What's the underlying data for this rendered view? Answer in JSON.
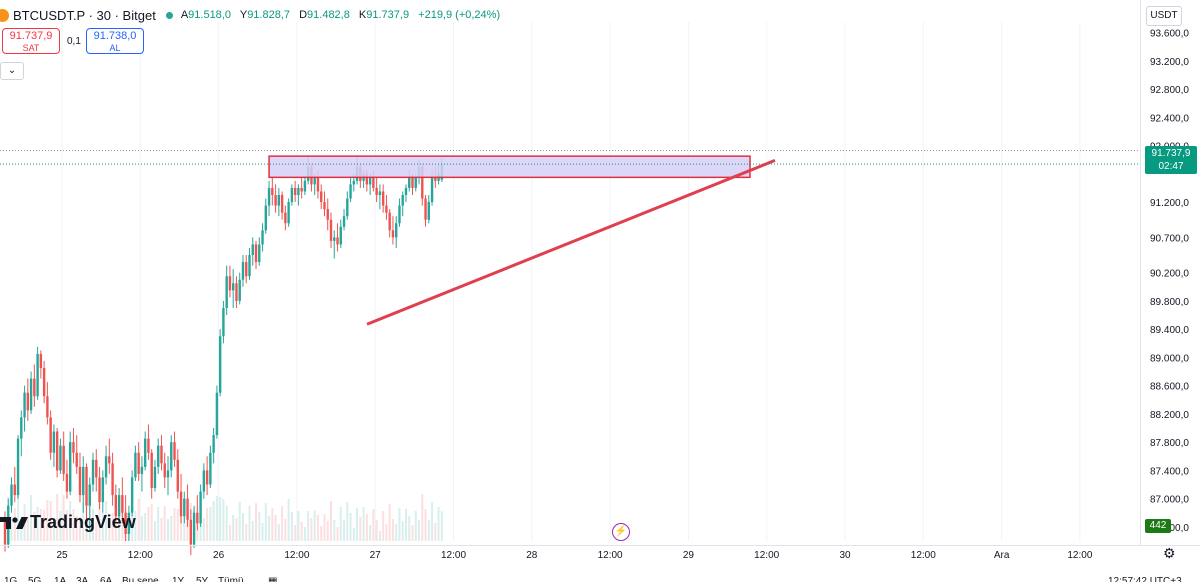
{
  "header": {
    "symbol": "BTCUSDT.P · 30 · Bitget",
    "ohlc": {
      "open_label": "A",
      "open": "91.518,0",
      "high_label": "Y",
      "high": "91.828,7",
      "low_label": "D",
      "low": "91.482,8",
      "close_label": "K",
      "close": "91.737,9",
      "change": "+219,9 (+0,24%)"
    }
  },
  "trade": {
    "sell_price": "91.737,9",
    "sell_label": "SAT",
    "spread": "0,1",
    "buy_price": "91.738,0",
    "buy_label": "AL",
    "collapse_icon": "chevron-down-icon"
  },
  "price_scale": {
    "currency": "USDT",
    "current_price": "91.737,9",
    "countdown": "02:47",
    "volume": "442"
  },
  "logo": {
    "text": "TradingView"
  },
  "bottom_bar": [
    "1G",
    "5G",
    "1A",
    "3A",
    "6A",
    "Bu sene",
    "1Y",
    "5Y",
    "Tümü",
    "",
    "12:57:42 UTC+3"
  ],
  "colors": {
    "up": "#26a69a",
    "down": "#ef5350",
    "trendline": "#e0404d",
    "zone_fill": "#d6d0f7",
    "zone_border": "#e03040",
    "price_tag": "#089981"
  },
  "chart_data": {
    "type": "candlestick",
    "symbol": "BTCUSDT.P",
    "interval": "30",
    "exchange": "Bitget",
    "y_ticks": [
      "93.600,0",
      "93.200,0",
      "92.800,0",
      "92.400,0",
      "92.000,0",
      "91.200,0",
      "90.700,0",
      "90.200,0",
      "89.800,0",
      "89.400,0",
      "89.000,0",
      "88.600,0",
      "88.200,0",
      "87.800,0",
      "87.400,0",
      "87.000,0",
      "86.600,0"
    ],
    "x_ticks": [
      "25",
      "12:00",
      "26",
      "12:00",
      "27",
      "12:00",
      "28",
      "12:00",
      "29",
      "12:00",
      "30",
      "12:00",
      "Ara",
      "12:00"
    ],
    "ylim": [
      86400,
      93750
    ],
    "last_price": 91737.9,
    "annotations": [
      {
        "type": "rectangle",
        "label": "resistance zone",
        "price_top": 91850,
        "price_bottom": 91550,
        "from": "27 01:00",
        "to": "29 13:00"
      },
      {
        "type": "trendline",
        "label": "ascending support",
        "from": {
          "time": "26 23:00",
          "price": 89470
        },
        "to": {
          "time": "29 16:00",
          "price": 91790
        }
      }
    ],
    "candles": [
      [
        86700,
        86820,
        86250,
        86350
      ],
      [
        86350,
        87000,
        86300,
        86900
      ],
      [
        86900,
        87300,
        86800,
        87200
      ],
      [
        87200,
        87450,
        86950,
        87050
      ],
      [
        87050,
        87900,
        87000,
        87850
      ],
      [
        87850,
        88250,
        87600,
        88150
      ],
      [
        88150,
        88600,
        87950,
        88500
      ],
      [
        88500,
        88700,
        88100,
        88250
      ],
      [
        88250,
        88800,
        88200,
        88700
      ],
      [
        88700,
        88900,
        88300,
        88450
      ],
      [
        88450,
        89150,
        88400,
        89050
      ],
      [
        89050,
        89100,
        88700,
        88850
      ],
      [
        88850,
        88950,
        88350,
        88450
      ],
      [
        88450,
        88650,
        88050,
        88150
      ],
      [
        88150,
        88250,
        87550,
        87650
      ],
      [
        87650,
        88050,
        87450,
        87950
      ],
      [
        87950,
        88000,
        87300,
        87400
      ],
      [
        87400,
        87850,
        87350,
        87750
      ],
      [
        87750,
        87950,
        87250,
        87350
      ],
      [
        87350,
        87550,
        87000,
        87100
      ],
      [
        87100,
        87950,
        87050,
        87800
      ],
      [
        87800,
        88000,
        87500,
        87650
      ],
      [
        87650,
        87900,
        87350,
        87450
      ],
      [
        87450,
        87650,
        86950,
        87050
      ],
      [
        87050,
        87600,
        86800,
        87450
      ],
      [
        87450,
        87500,
        86700,
        86900
      ],
      [
        86900,
        87300,
        86550,
        87200
      ],
      [
        87200,
        87650,
        87100,
        87550
      ],
      [
        87550,
        87700,
        87100,
        87300
      ],
      [
        87300,
        87450,
        86850,
        86950
      ],
      [
        86950,
        87400,
        86800,
        87300
      ],
      [
        87300,
        87750,
        87200,
        87600
      ],
      [
        87600,
        87850,
        87350,
        87500
      ],
      [
        87500,
        87650,
        86900,
        87050
      ],
      [
        87050,
        87200,
        86650,
        86750
      ],
      [
        86750,
        87150,
        86700,
        87050
      ],
      [
        87050,
        87300,
        86650,
        86800
      ],
      [
        86800,
        87050,
        86400,
        86500
      ],
      [
        86500,
        86900,
        86400,
        86800
      ],
      [
        86800,
        87400,
        86750,
        87300
      ],
      [
        87300,
        87750,
        87250,
        87650
      ],
      [
        87650,
        87800,
        87250,
        87350
      ],
      [
        87350,
        87600,
        87100,
        87450
      ],
      [
        87450,
        87950,
        87400,
        87850
      ],
      [
        87850,
        88050,
        87550,
        87650
      ],
      [
        87650,
        87700,
        87000,
        87150
      ],
      [
        87150,
        87550,
        87100,
        87450
      ],
      [
        87450,
        87850,
        87350,
        87750
      ],
      [
        87750,
        87900,
        87400,
        87500
      ],
      [
        87500,
        87650,
        87150,
        87300
      ],
      [
        87300,
        87600,
        87050,
        87400
      ],
      [
        87400,
        87900,
        87300,
        87800
      ],
      [
        87800,
        87950,
        87450,
        87550
      ],
      [
        87550,
        87700,
        87000,
        87100
      ],
      [
        87100,
        87350,
        86650,
        86750
      ],
      [
        86750,
        87100,
        86650,
        87000
      ],
      [
        87000,
        87200,
        86600,
        86700
      ],
      [
        86700,
        86850,
        86200,
        86350
      ],
      [
        86350,
        86900,
        86300,
        86800
      ],
      [
        86800,
        87050,
        86550,
        86650
      ],
      [
        86650,
        87200,
        86600,
        87100
      ],
      [
        87100,
        87500,
        87000,
        87400
      ],
      [
        87400,
        87600,
        87050,
        87200
      ],
      [
        87200,
        87750,
        87150,
        87650
      ],
      [
        87650,
        88000,
        87500,
        87900
      ],
      [
        87900,
        88600,
        87850,
        88500
      ],
      [
        88500,
        89400,
        88450,
        89300
      ],
      [
        89300,
        89800,
        89200,
        89700
      ],
      [
        89700,
        90300,
        89600,
        90150
      ],
      [
        90150,
        90300,
        89850,
        89950
      ],
      [
        89950,
        90250,
        89700,
        90050
      ],
      [
        90050,
        90150,
        89700,
        89800
      ],
      [
        89800,
        90200,
        89750,
        90100
      ],
      [
        90100,
        90450,
        90000,
        90350
      ],
      [
        90350,
        90450,
        90050,
        90150
      ],
      [
        90150,
        90550,
        90100,
        90450
      ],
      [
        90450,
        90700,
        90300,
        90600
      ],
      [
        90600,
        90650,
        90250,
        90350
      ],
      [
        90350,
        90700,
        90300,
        90600
      ],
      [
        90600,
        90900,
        90500,
        90800
      ],
      [
        90800,
        91250,
        90750,
        91150
      ],
      [
        91150,
        91500,
        91000,
        91400
      ],
      [
        91400,
        91550,
        91150,
        91300
      ],
      [
        91300,
        91450,
        91050,
        91150
      ],
      [
        91150,
        91400,
        91000,
        91300
      ],
      [
        91300,
        91350,
        90950,
        91050
      ],
      [
        91050,
        91150,
        90800,
        90900
      ],
      [
        90900,
        91250,
        90850,
        91200
      ],
      [
        91200,
        91450,
        91150,
        91400
      ],
      [
        91400,
        91500,
        91200,
        91300
      ],
      [
        91300,
        91450,
        91150,
        91400
      ],
      [
        91400,
        91550,
        91250,
        91350
      ],
      [
        91350,
        91550,
        91300,
        91500
      ],
      [
        91500,
        91850,
        91450,
        91700
      ],
      [
        91700,
        91750,
        91350,
        91450
      ],
      [
        91450,
        91600,
        91300,
        91550
      ],
      [
        91550,
        91650,
        91250,
        91350
      ],
      [
        91350,
        91450,
        91100,
        91200
      ],
      [
        91200,
        91350,
        91000,
        91100
      ],
      [
        91100,
        91250,
        90800,
        90950
      ],
      [
        90950,
        91050,
        90550,
        90650
      ],
      [
        90650,
        90800,
        90400,
        90700
      ],
      [
        90700,
        90900,
        90500,
        90600
      ],
      [
        90600,
        90950,
        90550,
        90850
      ],
      [
        90850,
        91100,
        90800,
        91000
      ],
      [
        91000,
        91350,
        90950,
        91250
      ],
      [
        91250,
        91550,
        91200,
        91450
      ],
      [
        91450,
        91600,
        91350,
        91500
      ],
      [
        91500,
        91850,
        91450,
        91700
      ],
      [
        91700,
        91750,
        91400,
        91500
      ],
      [
        91500,
        91650,
        91400,
        91600
      ],
      [
        91600,
        91650,
        91350,
        91450
      ],
      [
        91450,
        91600,
        91300,
        91550
      ],
      [
        91550,
        91650,
        91350,
        91400
      ],
      [
        91400,
        91550,
        91200,
        91300
      ],
      [
        91300,
        91450,
        91100,
        91350
      ],
      [
        91350,
        91450,
        91050,
        91150
      ],
      [
        91150,
        91300,
        90950,
        91050
      ],
      [
        91050,
        91100,
        90700,
        90800
      ],
      [
        90800,
        91000,
        90600,
        90700
      ],
      [
        90700,
        91000,
        90550,
        90900
      ],
      [
        90900,
        91250,
        90850,
        91150
      ],
      [
        91150,
        91350,
        91000,
        91300
      ],
      [
        91300,
        91450,
        91200,
        91400
      ],
      [
        91400,
        91650,
        91350,
        91550
      ],
      [
        91550,
        91600,
        91300,
        91400
      ],
      [
        91400,
        91600,
        91350,
        91550
      ],
      [
        91550,
        91800,
        91450,
        91700
      ],
      [
        91700,
        91750,
        91150,
        91250
      ],
      [
        91250,
        91300,
        90850,
        90950
      ],
      [
        90950,
        91300,
        90900,
        91200
      ],
      [
        91200,
        91650,
        91150,
        91550
      ],
      [
        91550,
        91700,
        91400,
        91500
      ],
      [
        91500,
        91750,
        91450,
        91600
      ],
      [
        91518,
        91828.7,
        91482.8,
        91737.9
      ]
    ]
  }
}
